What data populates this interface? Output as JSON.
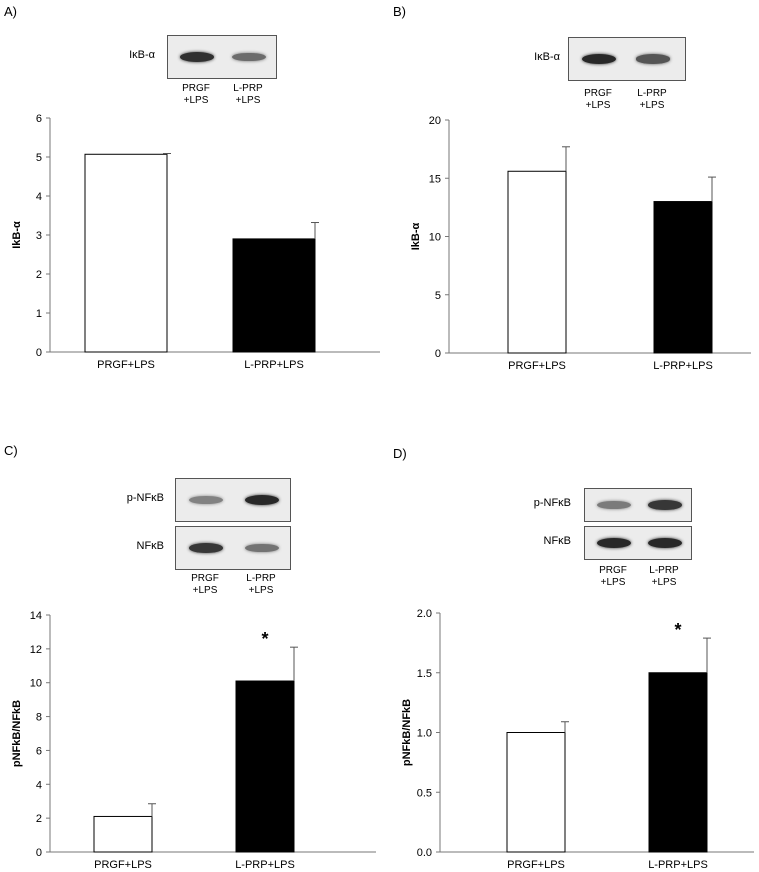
{
  "panels": [
    {
      "id": "A",
      "label": "A)",
      "blot": {
        "rows": [
          {
            "label": "IκB-α",
            "intensity": [
              0.95,
              0.55
            ]
          }
        ],
        "lanes": [
          "PRGF\n+LPS",
          "L-PRP\n+LPS"
        ]
      },
      "chart_data": {
        "type": "bar",
        "categories": [
          "PRGF+LPS",
          "L-PRP+LPS"
        ],
        "values": [
          5.07,
          2.9
        ],
        "errors": [
          0.02,
          0.42
        ],
        "fills": [
          "#ffffff",
          "#000000"
        ],
        "ylabel": "IkB-α",
        "ylim": [
          0,
          6
        ],
        "yticks": [
          "0",
          "1",
          "2",
          "3",
          "4",
          "5",
          "6"
        ],
        "significance": [
          "",
          ""
        ]
      }
    },
    {
      "id": "B",
      "label": "B)",
      "blot": {
        "rows": [
          {
            "label": "IκB-α",
            "intensity": [
              1.0,
              0.7
            ]
          }
        ],
        "lanes": [
          "PRGF\n+LPS",
          "L-PRP\n+LPS"
        ]
      },
      "chart_data": {
        "type": "bar",
        "categories": [
          "PRGF+LPS",
          "L-PRP+LPS"
        ],
        "values": [
          15.6,
          13.0
        ],
        "errors": [
          2.1,
          2.1
        ],
        "fills": [
          "#ffffff",
          "#000000"
        ],
        "ylabel": "IkB-α",
        "ylim": [
          0,
          20
        ],
        "yticks": [
          "0",
          "5",
          "10",
          "15",
          "20"
        ],
        "significance": [
          "",
          ""
        ]
      }
    },
    {
      "id": "C",
      "label": "C)",
      "blot": {
        "rows": [
          {
            "label": "p-NFκB",
            "intensity": [
              0.4,
              1.0
            ]
          },
          {
            "label": "NFκB",
            "intensity": [
              0.9,
              0.5
            ]
          }
        ],
        "lanes": [
          "PRGF\n+LPS",
          "L-PRP\n+LPS"
        ]
      },
      "chart_data": {
        "type": "bar",
        "categories": [
          "PRGF+LPS",
          "L-PRP+LPS"
        ],
        "values": [
          2.1,
          10.1
        ],
        "errors": [
          0.75,
          2.0
        ],
        "fills": [
          "#ffffff",
          "#000000"
        ],
        "ylabel": "pNFkB/NFkB",
        "ylim": [
          0,
          14
        ],
        "yticks": [
          "0",
          "2",
          "4",
          "6",
          "8",
          "10",
          "12",
          "14"
        ],
        "significance": [
          "",
          "*"
        ]
      }
    },
    {
      "id": "D",
      "label": "D)",
      "blot": {
        "rows": [
          {
            "label": "p-NFκB",
            "intensity": [
              0.45,
              0.9
            ]
          },
          {
            "label": "NFκB",
            "intensity": [
              1.0,
              1.0
            ]
          }
        ],
        "lanes": [
          "PRGF\n+LPS",
          "L-PRP\n+LPS"
        ]
      },
      "chart_data": {
        "type": "bar",
        "categories": [
          "PRGF+LPS",
          "L-PRP+LPS"
        ],
        "values": [
          1.0,
          1.5
        ],
        "errors": [
          0.09,
          0.29
        ],
        "fills": [
          "#ffffff",
          "#000000"
        ],
        "ylabel": "pNFkB/NFkB",
        "ylim": [
          0,
          2
        ],
        "yticks": [
          "0.0",
          "0.5",
          "1.0",
          "1.5",
          "2.0"
        ],
        "significance": [
          "",
          "*"
        ]
      }
    }
  ]
}
